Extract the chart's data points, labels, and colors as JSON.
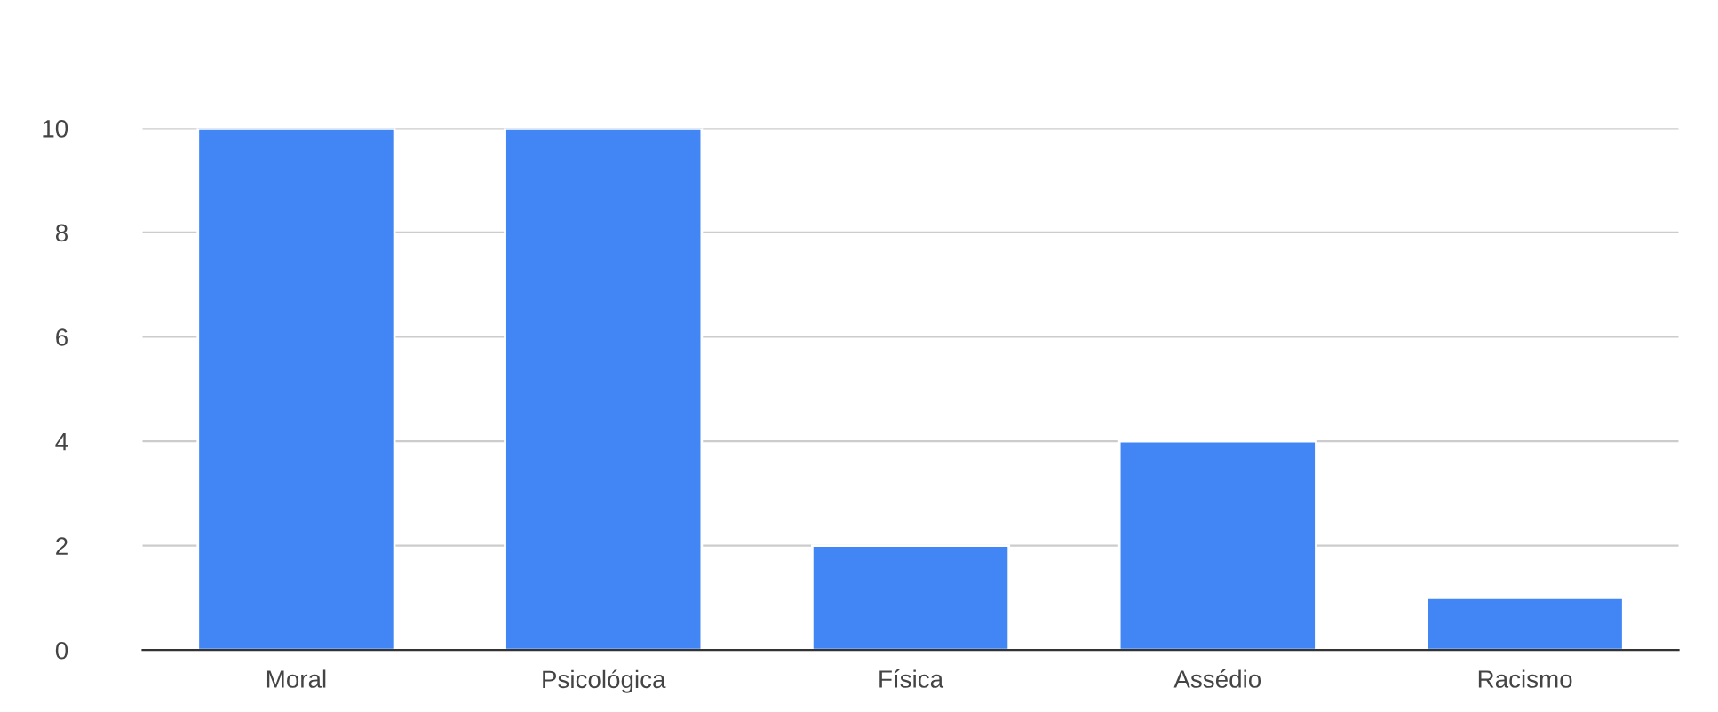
{
  "chart_data": {
    "type": "bar",
    "categories": [
      "Moral",
      "Psicológica",
      "Física",
      "Assédio",
      "Racismo"
    ],
    "values": [
      10,
      10,
      2,
      4,
      1
    ],
    "color": "#4285f4",
    "ylim": [
      0,
      10
    ],
    "yticks": [
      0,
      2,
      4,
      6,
      8,
      10
    ],
    "grid": "y",
    "legend": false
  }
}
